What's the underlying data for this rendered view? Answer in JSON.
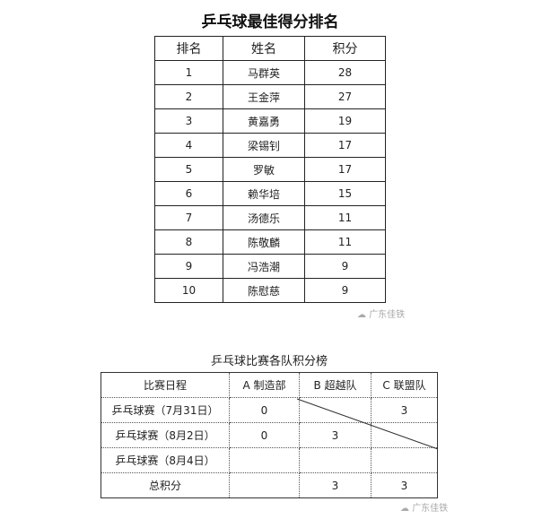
{
  "ranking": {
    "title": "乒乓球最佳得分排名",
    "headers": [
      "排名",
      "姓名",
      "积分"
    ],
    "rows": [
      [
        "1",
        "马群英",
        "28"
      ],
      [
        "2",
        "王金萍",
        "27"
      ],
      [
        "3",
        "黄嘉勇",
        "19"
      ],
      [
        "4",
        "梁锡钊",
        "17"
      ],
      [
        "5",
        "罗敏",
        "17"
      ],
      [
        "6",
        "赖华培",
        "15"
      ],
      [
        "7",
        "汤德乐",
        "11"
      ],
      [
        "8",
        "陈敬麟",
        "11"
      ],
      [
        "9",
        "冯浩潮",
        "9"
      ],
      [
        "10",
        "陈慰慈",
        "9"
      ]
    ],
    "watermark": "广东佳铁"
  },
  "teams": {
    "title": "乒乓球比赛各队积分榜",
    "headers": [
      "比赛日程",
      "A 制造部",
      "B 超越队",
      "C 联盟队"
    ],
    "rows": [
      [
        "乒乓球赛（7月31日）",
        "0",
        "",
        "3"
      ],
      [
        "乒乓球赛（8月2日）",
        "0",
        "3",
        ""
      ],
      [
        "乒乓球赛（8月4日）",
        "",
        "",
        ""
      ],
      [
        "总积分",
        "",
        "3",
        "3"
      ]
    ],
    "watermark": "广东佳铁"
  }
}
